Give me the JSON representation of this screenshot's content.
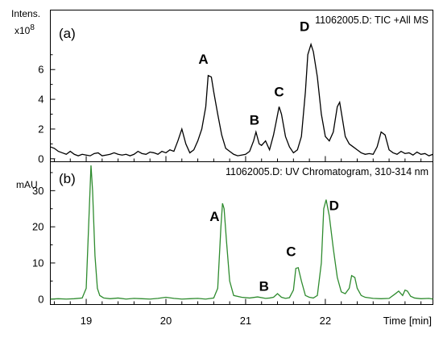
{
  "chart_data": [
    {
      "type": "line",
      "panel_tag": "(a)",
      "title": "11062005.D: TIC +All MS",
      "ylabel_line1": "Intens.",
      "ylabel_line2": "x10",
      "ylabel_exp": "8",
      "ylim": [
        -0.2,
        10
      ],
      "yticks": [
        0,
        2,
        4,
        6
      ],
      "line_color": "#000000",
      "x": [
        18.55,
        18.6,
        18.65,
        18.7,
        18.75,
        18.8,
        18.85,
        18.9,
        18.95,
        19.0,
        19.05,
        19.1,
        19.15,
        19.2,
        19.25,
        19.3,
        19.35,
        19.4,
        19.45,
        19.5,
        19.55,
        19.6,
        19.65,
        19.7,
        19.75,
        19.8,
        19.85,
        19.9,
        19.95,
        20.0,
        20.05,
        20.1,
        20.15,
        20.2,
        20.25,
        20.3,
        20.35,
        20.4,
        20.45,
        20.5,
        20.53,
        20.57,
        20.6,
        20.65,
        20.7,
        20.75,
        20.8,
        20.85,
        20.9,
        20.95,
        21.0,
        21.05,
        21.1,
        21.13,
        21.17,
        21.2,
        21.25,
        21.3,
        21.35,
        21.38,
        21.42,
        21.45,
        21.5,
        21.55,
        21.6,
        21.65,
        21.7,
        21.75,
        21.78,
        21.82,
        21.85,
        21.9,
        21.95,
        22.0,
        22.05,
        22.1,
        22.15,
        22.18,
        22.22,
        22.25,
        22.3,
        22.35,
        22.4,
        22.45,
        22.5,
        22.55,
        22.6,
        22.65,
        22.7,
        22.75,
        22.8,
        22.85,
        22.9,
        22.95,
        23.0,
        23.05,
        23.1,
        23.15,
        23.2,
        23.25,
        23.3,
        23.35
      ],
      "y": [
        0.8,
        0.7,
        0.5,
        0.4,
        0.3,
        0.5,
        0.3,
        0.2,
        0.3,
        0.25,
        0.2,
        0.35,
        0.4,
        0.2,
        0.25,
        0.3,
        0.4,
        0.3,
        0.25,
        0.3,
        0.2,
        0.3,
        0.5,
        0.35,
        0.3,
        0.45,
        0.4,
        0.3,
        0.5,
        0.4,
        0.6,
        0.5,
        1.2,
        2.0,
        1.0,
        0.4,
        0.6,
        1.2,
        2.0,
        3.5,
        5.6,
        5.5,
        4.5,
        3.0,
        1.6,
        0.7,
        0.5,
        0.3,
        0.2,
        0.25,
        0.3,
        0.5,
        1.2,
        1.8,
        1.0,
        0.9,
        1.2,
        0.6,
        1.6,
        2.4,
        3.5,
        3.0,
        1.5,
        0.8,
        0.4,
        0.6,
        1.5,
        4.5,
        7.0,
        7.7,
        7.2,
        5.5,
        3.0,
        1.5,
        1.2,
        1.8,
        3.5,
        3.8,
        2.5,
        1.5,
        1.0,
        0.8,
        0.6,
        0.4,
        0.3,
        0.35,
        0.3,
        0.8,
        1.8,
        1.6,
        0.6,
        0.4,
        0.3,
        0.5,
        0.35,
        0.4,
        0.25,
        0.45,
        0.3,
        0.35,
        0.2,
        0.3
      ],
      "annotations": [
        {
          "text": "A",
          "x": 20.47,
          "y": 6.4
        },
        {
          "text": "B",
          "x": 21.11,
          "y": 2.3
        },
        {
          "text": "C",
          "x": 21.42,
          "y": 4.2
        },
        {
          "text": "D",
          "x": 21.74,
          "y": 8.6
        }
      ]
    },
    {
      "type": "line",
      "panel_tag": "(b)",
      "title": "11062005.D: UV Chromatogram, 310-314 nm",
      "ylabel": "mAU",
      "ylim": [
        -1.5,
        38
      ],
      "yticks": [
        0,
        10,
        20,
        30
      ],
      "xlim": [
        18.55,
        23.35
      ],
      "xticks": [
        19,
        20,
        21,
        22
      ],
      "xlabel": "Time [min]",
      "line_color": "#2e8b2e",
      "x": [
        18.55,
        18.65,
        18.75,
        18.85,
        18.95,
        19.0,
        19.03,
        19.06,
        19.08,
        19.11,
        19.14,
        19.17,
        19.22,
        19.3,
        19.4,
        19.5,
        19.6,
        19.7,
        19.8,
        19.9,
        20.0,
        20.1,
        20.2,
        20.3,
        20.4,
        20.5,
        20.6,
        20.65,
        20.69,
        20.71,
        20.73,
        20.76,
        20.8,
        20.85,
        20.95,
        21.05,
        21.15,
        21.25,
        21.3,
        21.35,
        21.4,
        21.45,
        21.5,
        21.55,
        21.6,
        21.63,
        21.66,
        21.7,
        21.75,
        21.8,
        21.85,
        21.9,
        21.95,
        21.98,
        22.01,
        22.05,
        22.1,
        22.15,
        22.2,
        22.25,
        22.3,
        22.33,
        22.37,
        22.4,
        22.45,
        22.5,
        22.6,
        22.7,
        22.8,
        22.88,
        22.92,
        22.97,
        23.0,
        23.03,
        23.07,
        23.12,
        23.2,
        23.3,
        23.35
      ],
      "y": [
        0,
        0.1,
        0,
        0.1,
        0.3,
        3,
        20,
        37,
        30,
        12,
        3,
        1,
        0.3,
        0.1,
        0.3,
        0,
        0.2,
        0.1,
        0,
        0.2,
        0.5,
        0.2,
        0,
        0.1,
        0.2,
        0,
        0.3,
        3,
        20,
        26.5,
        25,
        16,
        5,
        1,
        0.5,
        0.3,
        0.6,
        0.2,
        0.3,
        0.5,
        1.5,
        0.5,
        0.2,
        0.4,
        2.5,
        8.5,
        8.7,
        5,
        1,
        0.5,
        0.3,
        1,
        10,
        25,
        27.5,
        23,
        14,
        6,
        2,
        1.5,
        3,
        6.5,
        6,
        3,
        1,
        0.5,
        0.2,
        0.1,
        0.2,
        1.5,
        2.2,
        1,
        2.5,
        2.2,
        0.8,
        0.3,
        0.1,
        0.2,
        0
      ],
      "annotations": [
        {
          "text": "A",
          "x": 20.61,
          "y": 21.6
        },
        {
          "text": "B",
          "x": 21.23,
          "y": 2.3
        },
        {
          "text": "C",
          "x": 21.57,
          "y": 11.9
        },
        {
          "text": "D",
          "x": 22.11,
          "y": 24.6
        }
      ]
    }
  ]
}
